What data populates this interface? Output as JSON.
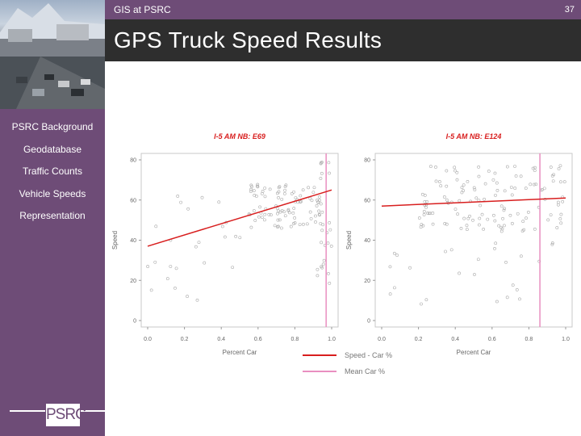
{
  "header": {
    "section": "GIS at PSRC",
    "page_number": "37",
    "title": "GPS Truck Speed Results"
  },
  "sidebar": {
    "items": [
      {
        "label": "PSRC Background",
        "active": false
      },
      {
        "label": "Geodatabase",
        "active": false
      },
      {
        "label": "Traffic Counts",
        "active": false
      },
      {
        "label": "Vehicle Speeds",
        "active": true
      },
      {
        "label": "Representation",
        "active": false
      }
    ]
  },
  "logo": {
    "text": "PSRC"
  },
  "colors": {
    "purple": "#6e4c77",
    "title_bar": "#2e2e2e",
    "fit_line": "#d81e1e",
    "mean_line": "#e98fc0",
    "points": "#aaaaaa"
  },
  "chart_data": [
    {
      "type": "scatter",
      "title": "I-5 AM NB: E69",
      "xlabel": "Percent Car",
      "ylabel": "Speed",
      "xlim": [
        0,
        1
      ],
      "ylim": [
        0,
        80
      ],
      "xticks": [
        "0.0",
        "0.2",
        "0.4",
        "0.6",
        "0.8",
        "1.0"
      ],
      "yticks": [
        "0",
        "20",
        "40",
        "60",
        "80"
      ],
      "fit_line": {
        "name": "Speed - Car %",
        "points": [
          [
            0,
            37
          ],
          [
            1,
            65
          ]
        ]
      },
      "mean_line": {
        "name": "Mean Car %",
        "x": 0.97
      },
      "point_cloud": [
        {
          "x_range": [
            0.55,
            0.95
          ],
          "y_range": [
            46,
            68
          ],
          "count": 90
        },
        {
          "x_range": [
            0.92,
            1.0
          ],
          "y_range": [
            15,
            80
          ],
          "count": 30
        },
        {
          "x_range": [
            0.0,
            0.55
          ],
          "y_range": [
            10,
            66
          ],
          "count": 25
        }
      ]
    },
    {
      "type": "scatter",
      "title": "I-5 AM NB: E124",
      "xlabel": "Percent Car",
      "ylabel": "Speed",
      "xlim": [
        0,
        1
      ],
      "ylim": [
        0,
        80
      ],
      "xticks": [
        "0.0",
        "0.2",
        "0.4",
        "0.6",
        "0.8",
        "1.0"
      ],
      "yticks": [
        "0",
        "20",
        "40",
        "60",
        "80"
      ],
      "fit_line": {
        "name": "Speed - Car %",
        "points": [
          [
            0,
            57
          ],
          [
            1,
            61
          ]
        ]
      },
      "mean_line": {
        "name": "Mean Car %",
        "x": 0.86
      },
      "point_cloud": [
        {
          "x_range": [
            0.2,
            1.0
          ],
          "y_range": [
            44,
            78
          ],
          "count": 130
        },
        {
          "x_range": [
            0.0,
            1.0
          ],
          "y_range": [
            8,
            40
          ],
          "count": 25
        }
      ]
    }
  ],
  "legend": [
    {
      "name": "Speed - Car %",
      "color": "#d81e1e"
    },
    {
      "name": "Mean Car %",
      "color": "#e98fc0"
    }
  ]
}
